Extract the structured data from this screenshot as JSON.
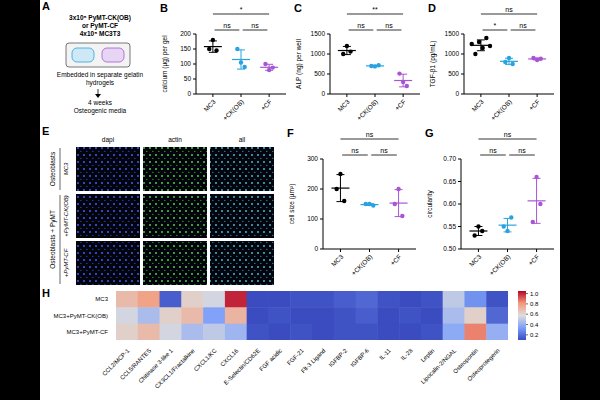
{
  "panels": {
    "A": {
      "letter": "A",
      "lines": [
        "3x10⁵ PyMT-CK(OB)",
        "or PyMT-CF",
        "4x10⁵ MC3T3"
      ],
      "box_caption": "Embedded in separate gelatin hydrogels",
      "culture": [
        "4 weeks",
        "Osteogenic media"
      ]
    },
    "E": {
      "letter": "E",
      "columns": [
        "dapi",
        "actin",
        "all"
      ],
      "row_groups": [
        {
          "label": "Osteoblasts",
          "rows": [
            "MC3"
          ]
        },
        {
          "label": "Osteoblasts + PyMT",
          "rows": [
            "+PyMT-CK(OB)",
            "+PyMT-CF"
          ]
        }
      ]
    }
  },
  "chart_data": [
    {
      "letter": "B",
      "type": "scatter",
      "y_label": "calcium (µg) per gel",
      "categories": [
        "MC3",
        "+CK(OB)",
        "+CF"
      ],
      "colors": [
        "#000000",
        "#29a3e0",
        "#a855d6"
      ],
      "values": [
        [
          150,
          180,
          145
        ],
        [
          150,
          105,
          90
        ],
        [
          100,
          80,
          88
        ]
      ],
      "means": [
        158,
        115,
        89
      ],
      "errors": [
        19,
        32,
        10
      ],
      "ylim": [
        0,
        200
      ],
      "yticks": [
        0,
        50,
        100,
        150,
        200
      ],
      "comparisons": [
        {
          "from": "MC3",
          "to": "+CF",
          "label": "*"
        },
        {
          "from": "MC3",
          "to": "+CK(OB)",
          "label": "ns"
        },
        {
          "from": "+CK(OB)",
          "to": "+CF",
          "label": "ns"
        }
      ]
    },
    {
      "letter": "C",
      "type": "scatter",
      "y_label": "ALP (ng) per well",
      "categories": [
        "MC3",
        "+CK(OB)",
        "+CF"
      ],
      "colors": [
        "#000000",
        "#29a3e0",
        "#a855d6"
      ],
      "values": [
        [
          1000,
          1200,
          1060
        ],
        [
          700,
          690,
          720
        ],
        [
          510,
          300,
          200
        ]
      ],
      "means": [
        1087,
        703,
        337
      ],
      "errors": [
        102,
        15,
        158
      ],
      "ylim": [
        0,
        1500
      ],
      "yticks": [
        0,
        500,
        1000,
        1500
      ],
      "comparisons": [
        {
          "from": "MC3",
          "to": "+CF",
          "label": "**"
        },
        {
          "from": "MC3",
          "to": "+CK(OB)",
          "label": "ns"
        },
        {
          "from": "+CK(OB)",
          "to": "+CF",
          "label": "ns"
        }
      ]
    },
    {
      "letter": "D",
      "type": "scatter",
      "y_label": "TGF-β1 (pg/mL)",
      "categories": [
        "MC3",
        "+CK(OB)",
        "+CF"
      ],
      "colors": [
        "#000000",
        "#29a3e0",
        "#a855d6"
      ],
      "values": [
        [
          1250,
          1000,
          1300,
          1150,
          1400,
          1200
        ],
        [
          800,
          900,
          750
        ],
        [
          900,
          850,
          880
        ]
      ],
      "means": [
        1217,
        817,
        877
      ],
      "errors": [
        135,
        76,
        25
      ],
      "ylim": [
        0,
        1500
      ],
      "yticks": [
        0,
        500,
        1000,
        1500
      ],
      "comparisons": [
        {
          "from": "MC3",
          "to": "+CF",
          "label": "ns"
        },
        {
          "from": "MC3",
          "to": "+CK(OB)",
          "label": "*"
        },
        {
          "from": "+CK(OB)",
          "to": "+CF",
          "label": "ns"
        }
      ]
    },
    {
      "letter": "F",
      "type": "scatter",
      "y_label": "cell size (µm²)",
      "categories": [
        "MC3",
        "+CK(OB)",
        "+CF"
      ],
      "colors": [
        "#000000",
        "#29a3e0",
        "#a855d6"
      ],
      "values": [
        [
          200,
          250,
          160
        ],
        [
          150,
          150,
          145
        ],
        [
          150,
          200,
          110
        ]
      ],
      "means": [
        203,
        148,
        153
      ],
      "errors": [
        45,
        3,
        45
      ],
      "ylim": [
        0,
        300
      ],
      "yticks": [
        0,
        100,
        200,
        300
      ],
      "comparisons": [
        {
          "from": "MC3",
          "to": "+CF",
          "label": "ns"
        },
        {
          "from": "MC3",
          "to": "+CK(OB)",
          "label": "ns"
        },
        {
          "from": "+CK(OB)",
          "to": "+CF",
          "label": "ns"
        }
      ]
    },
    {
      "letter": "G",
      "type": "scatter",
      "y_label": "circularity",
      "categories": [
        "MC3",
        "+CK(OB)",
        "+CF"
      ],
      "colors": [
        "#000000",
        "#29a3e0",
        "#a855d6"
      ],
      "values": [
        [
          0.53,
          0.55,
          0.54
        ],
        [
          0.55,
          0.54,
          0.57
        ],
        [
          0.56,
          0.66,
          0.6
        ]
      ],
      "means": [
        0.54,
        0.553,
        0.607
      ],
      "errors": [
        0.01,
        0.015,
        0.05
      ],
      "ylim": [
        0.5,
        0.7
      ],
      "yticks": [
        {
          "value": 0.5,
          "label": "0.50"
        },
        0.55,
        {
          "value": 0.6,
          "label": "0.60"
        },
        0.65,
        {
          "value": 0.7,
          "label": "0.70"
        }
      ],
      "comparisons": [
        {
          "from": "MC3",
          "to": "+CF",
          "label": "ns"
        },
        {
          "from": "MC3",
          "to": "+CK(OB)",
          "label": "ns"
        },
        {
          "from": "+CK(OB)",
          "to": "+CF",
          "label": "ns"
        }
      ]
    },
    {
      "letter": "H",
      "type": "heatmap",
      "rows": [
        "MC3",
        "MC3+PyMT-CK(OB)",
        "MC3+PyMT-CF"
      ],
      "columns": [
        "CCL2/MCP-1",
        "CCL5/RANTES",
        "Chitinase 3-like 1",
        "CX3CL1/Fractalkine",
        "CXCL1/KC",
        "CXCL16",
        "E-Selectin/CD62E",
        "FGF acidic",
        "FGF-21",
        "Flt-3 Ligand",
        "IGFBP-2",
        "IGFBP-6",
        "IL-11",
        "IL-28",
        "Leptin",
        "Lipocalin-2/NGAL",
        "Osteopontin",
        "Osteoprotegerin"
      ],
      "cells": [
        [
          0.7,
          0.78,
          0.15,
          0.62,
          0.55,
          1,
          0.1,
          0.1,
          0.12,
          0.12,
          0.15,
          0.18,
          0.12,
          0.1,
          0.12,
          0.5,
          0.3,
          0.12
        ],
        [
          0.55,
          0.45,
          0.62,
          0.7,
          0.35,
          0.72,
          0.1,
          0.12,
          0.1,
          0.1,
          0.12,
          0.15,
          0.1,
          0.12,
          0.1,
          0.45,
          0.62,
          0.18
        ],
        [
          0.62,
          0.7,
          0.55,
          0.45,
          0.5,
          0.42,
          0.12,
          0.1,
          0.12,
          0.1,
          0.12,
          0.12,
          0.1,
          0.1,
          0.12,
          0.38,
          0.85,
          0.4
        ]
      ],
      "colorbar": {
        "range": [
          0.1,
          1.05
        ],
        "ticks": [
          0.2,
          0.4,
          0.6,
          0.8,
          {
            "value": 1,
            "label": "1.0"
          }
        ]
      }
    }
  ]
}
